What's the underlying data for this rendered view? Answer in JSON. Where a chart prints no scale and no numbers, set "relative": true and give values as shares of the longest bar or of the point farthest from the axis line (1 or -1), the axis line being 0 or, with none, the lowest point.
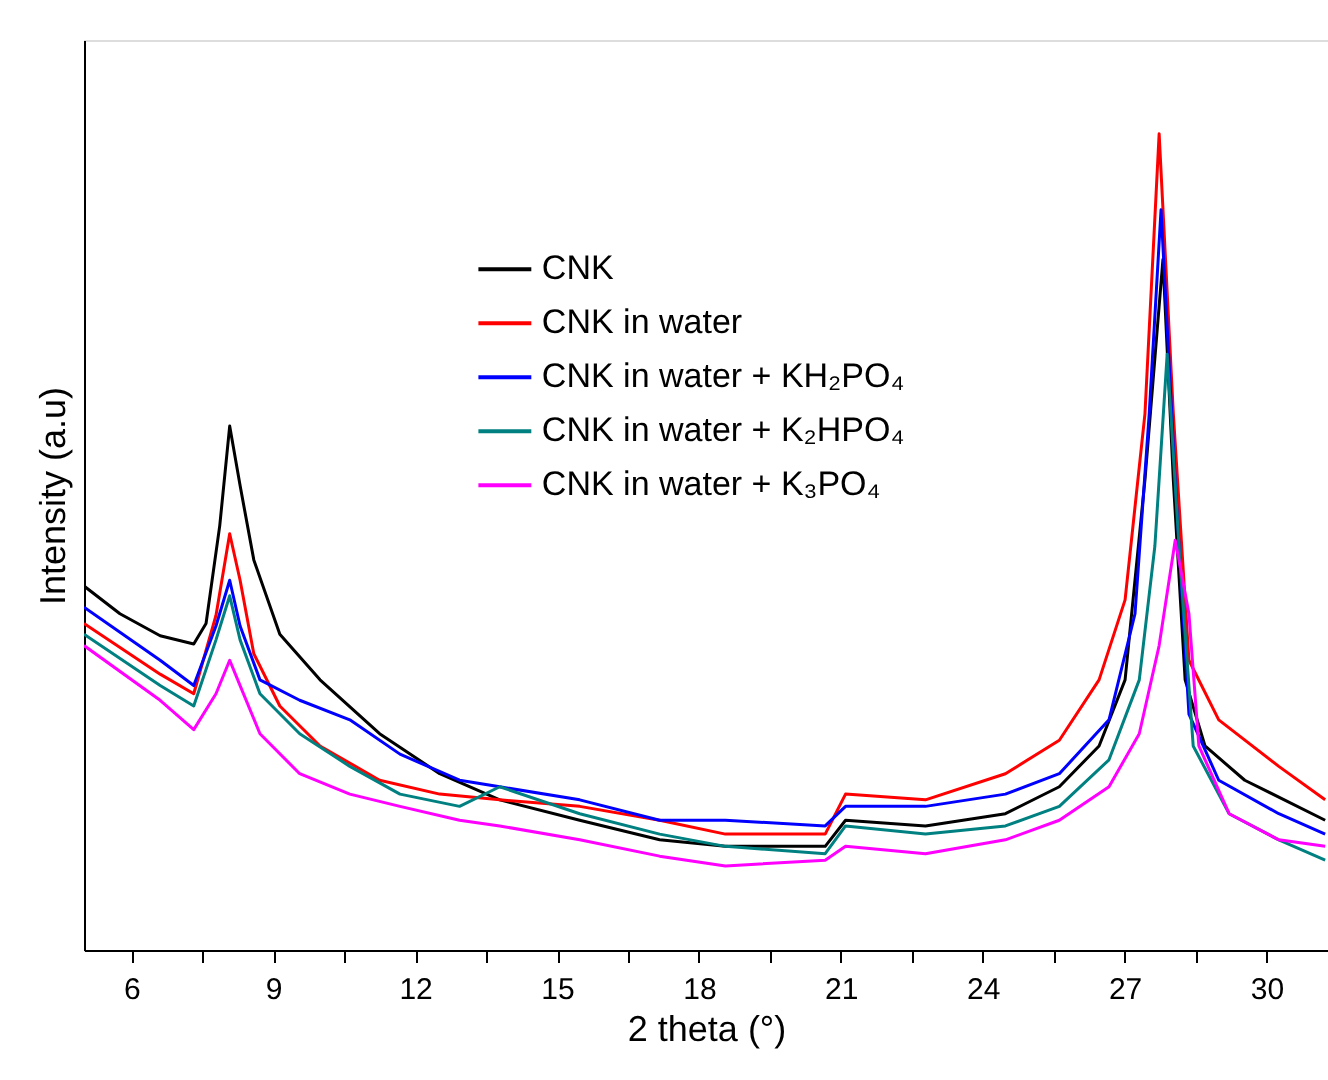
{
  "chart_data": {
    "type": "line",
    "relative": true,
    "xlabel": "2 theta (°)",
    "ylabel": "Intensity (a.u)",
    "xlim": [
      5,
      31.3
    ],
    "xticks": [
      6,
      {
        "value": 7.5,
        "label": null
      },
      9,
      {
        "value": 10.5,
        "label": null
      },
      12,
      {
        "value": 13.5,
        "label": null
      },
      15,
      {
        "value": 16.5,
        "label": null
      },
      18,
      {
        "value": 19.5,
        "label": null
      },
      21,
      {
        "value": 22.5,
        "label": null
      },
      24,
      {
        "value": 25.5,
        "label": null
      },
      27,
      {
        "value": 28.5,
        "label": null
      },
      30
    ],
    "tick_labels": "x",
    "grid": false,
    "legend": "top",
    "marker": "none",
    "line_style": "solid",
    "series": [
      {
        "name": "CNK",
        "color": "#000000",
        "x": [
          5.0,
          5.76,
          6.61,
          7.32,
          7.58,
          7.87,
          8.08,
          8.3,
          8.59,
          9.14,
          9.99,
          11.25,
          12.52,
          13.79,
          15.48,
          17.17,
          18.56,
          20.67,
          21.1,
          22.79,
          24.48,
          25.62,
          26.46,
          27.01,
          27.43,
          27.81,
          28.03,
          28.28,
          28.7,
          29.54,
          31.24
        ],
        "values": [
          0.446,
          0.412,
          0.385,
          0.375,
          0.4,
          0.52,
          0.642,
          0.569,
          0.478,
          0.387,
          0.331,
          0.265,
          0.216,
          0.184,
          0.159,
          0.135,
          0.127,
          0.127,
          0.159,
          0.152,
          0.167,
          0.2,
          0.25,
          0.331,
          0.576,
          0.846,
          0.576,
          0.331,
          0.25,
          0.208,
          0.159
        ]
      },
      {
        "name": "CNK in water",
        "color": "#ff0000",
        "x": [
          5.0,
          6.61,
          7.32,
          7.79,
          8.08,
          8.3,
          8.59,
          9.14,
          9.99,
          11.25,
          12.52,
          13.79,
          15.48,
          17.17,
          18.56,
          20.67,
          21.1,
          22.79,
          24.48,
          25.62,
          26.46,
          27.01,
          27.43,
          27.73,
          28.03,
          28.36,
          28.99,
          30.26,
          31.24
        ],
        "values": [
          0.4,
          0.338,
          0.314,
          0.41,
          0.51,
          0.453,
          0.363,
          0.299,
          0.25,
          0.208,
          0.191,
          0.184,
          0.176,
          0.159,
          0.142,
          0.142,
          0.191,
          0.184,
          0.216,
          0.257,
          0.331,
          0.429,
          0.657,
          1.0,
          0.657,
          0.355,
          0.282,
          0.225,
          0.184
        ]
      },
      {
        "name": "CNK in water + KH₂PO₄",
        "color": "#0000ff",
        "x": [
          5.0,
          6.61,
          7.32,
          7.79,
          8.08,
          8.3,
          8.72,
          9.56,
          10.62,
          11.68,
          12.94,
          13.79,
          15.48,
          17.17,
          18.56,
          20.67,
          21.1,
          22.79,
          24.48,
          25.62,
          26.67,
          27.22,
          27.52,
          27.77,
          28.07,
          28.36,
          28.99,
          30.26,
          31.24
        ],
        "values": [
          0.42,
          0.355,
          0.324,
          0.397,
          0.453,
          0.397,
          0.331,
          0.306,
          0.282,
          0.24,
          0.208,
          0.2,
          0.184,
          0.159,
          0.159,
          0.152,
          0.176,
          0.176,
          0.191,
          0.216,
          0.282,
          0.412,
          0.657,
          0.907,
          0.576,
          0.289,
          0.208,
          0.167,
          0.142
        ]
      },
      {
        "name": "CNK in water + K₂HPO₄",
        "color": "#008080",
        "x": [
          5.0,
          6.61,
          7.32,
          7.79,
          8.08,
          8.3,
          8.72,
          9.56,
          10.62,
          11.68,
          12.94,
          13.79,
          15.48,
          17.17,
          18.56,
          20.67,
          21.1,
          22.79,
          24.48,
          25.62,
          26.67,
          27.31,
          27.64,
          27.9,
          28.15,
          28.45,
          29.21,
          30.26,
          31.24
        ],
        "values": [
          0.387,
          0.324,
          0.299,
          0.38,
          0.434,
          0.38,
          0.314,
          0.265,
          0.225,
          0.191,
          0.176,
          0.2,
          0.167,
          0.142,
          0.127,
          0.118,
          0.152,
          0.142,
          0.152,
          0.176,
          0.233,
          0.331,
          0.495,
          0.73,
          0.495,
          0.25,
          0.167,
          0.135,
          0.11
        ]
      },
      {
        "name": "CNK in water + K₃PO₄",
        "color": "#ff00ff",
        "x": [
          5.0,
          6.61,
          7.32,
          7.79,
          8.08,
          8.3,
          8.72,
          9.56,
          10.62,
          11.68,
          12.94,
          13.79,
          15.48,
          17.17,
          18.56,
          20.67,
          21.1,
          22.79,
          24.48,
          25.62,
          26.67,
          27.31,
          27.73,
          28.07,
          28.36,
          28.57,
          29.21,
          30.26,
          31.24
        ],
        "values": [
          0.373,
          0.306,
          0.27,
          0.314,
          0.355,
          0.324,
          0.265,
          0.216,
          0.191,
          0.176,
          0.159,
          0.152,
          0.135,
          0.115,
          0.103,
          0.11,
          0.127,
          0.118,
          0.135,
          0.159,
          0.2,
          0.265,
          0.373,
          0.502,
          0.412,
          0.25,
          0.167,
          0.135,
          0.127
        ]
      }
    ]
  }
}
